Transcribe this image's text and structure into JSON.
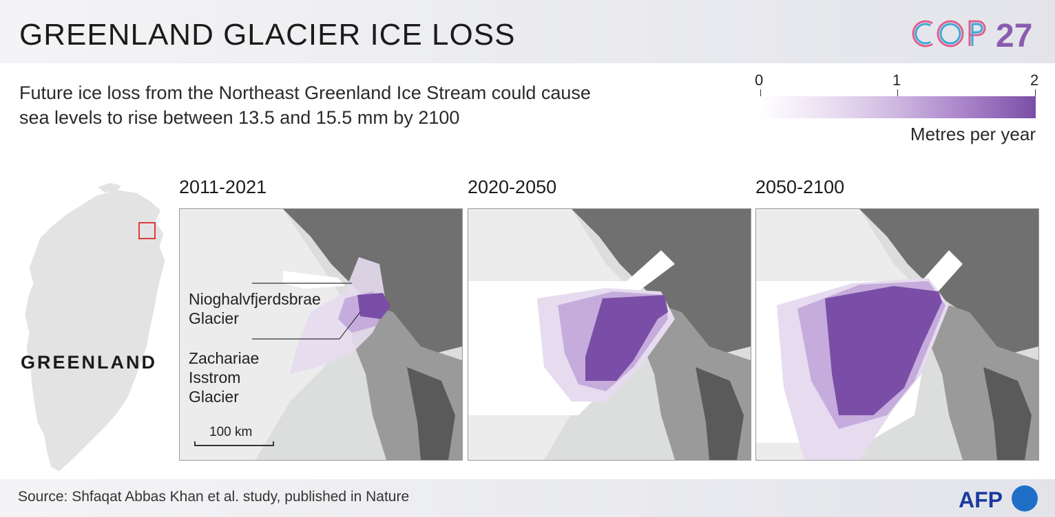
{
  "header": {
    "title": "GREENLAND GLACIER ICE LOSS"
  },
  "branding": {
    "cop_text": "COP",
    "cop_number": "27",
    "afp_text": "AFP"
  },
  "subtitle": "Future ice loss from the Northeast Greenland Ice Stream could cause sea levels to rise between 13.5 and 15.5 mm by 2100",
  "legend": {
    "ticks": [
      "0",
      "1",
      "2"
    ],
    "units": "Metres per year",
    "colors": [
      "#ffffff",
      "#eadff2",
      "#cdb6e0",
      "#a882c8",
      "#7a4ea6"
    ]
  },
  "overview_map": {
    "label": "GREENLAND",
    "highlight_color": "#e0393e"
  },
  "panels": [
    {
      "period": "2011-2021"
    },
    {
      "period": "2020-2050"
    },
    {
      "period": "2050-2100"
    }
  ],
  "annotations": {
    "glacier_1": "Nioghalvfjerdsbrae Glacier",
    "glacier_2": "Zachariae Isstrom Glacier"
  },
  "scale_bar": {
    "label": "100 km"
  },
  "footer": {
    "source": "Source: Shfaqat Abbas Khan et al. study, published in Nature"
  },
  "colors": {
    "land": "#6e6e6e",
    "ice": "#e9ebeb",
    "loss": "#7a4ea6"
  }
}
